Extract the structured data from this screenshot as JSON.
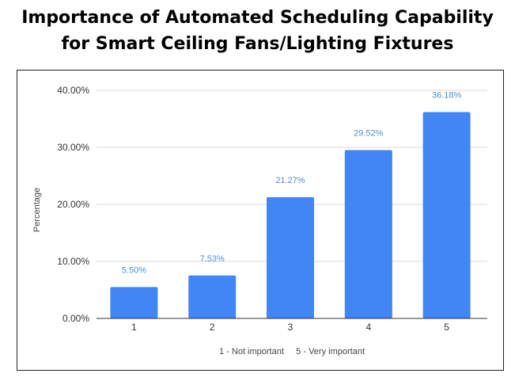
{
  "title": {
    "line1": "Importance of Automated Scheduling Capability",
    "line2": "for Smart Ceiling Fans/Lighting Fixtures"
  },
  "chart_data": {
    "type": "bar",
    "categories": [
      "1",
      "2",
      "3",
      "4",
      "5"
    ],
    "values": [
      5.5,
      7.53,
      21.27,
      29.52,
      36.18
    ],
    "data_labels": [
      "5.50%",
      "7.53%",
      "21.27%",
      "29.52%",
      "36.18%"
    ],
    "ylabel": "Percentage",
    "xlabel": "1 - Not important     5 - Very important",
    "ylim": [
      0,
      40
    ],
    "yticks": [
      0,
      10,
      20,
      30,
      40
    ],
    "ytick_labels": [
      "0.00%",
      "10.00%",
      "20.00%",
      "30.00%",
      "40.00%"
    ],
    "grid": true,
    "legend": "none",
    "colors": {
      "bar": "#4285f4",
      "label": "#4a8fd9",
      "grid": "#d9d9d9"
    }
  }
}
